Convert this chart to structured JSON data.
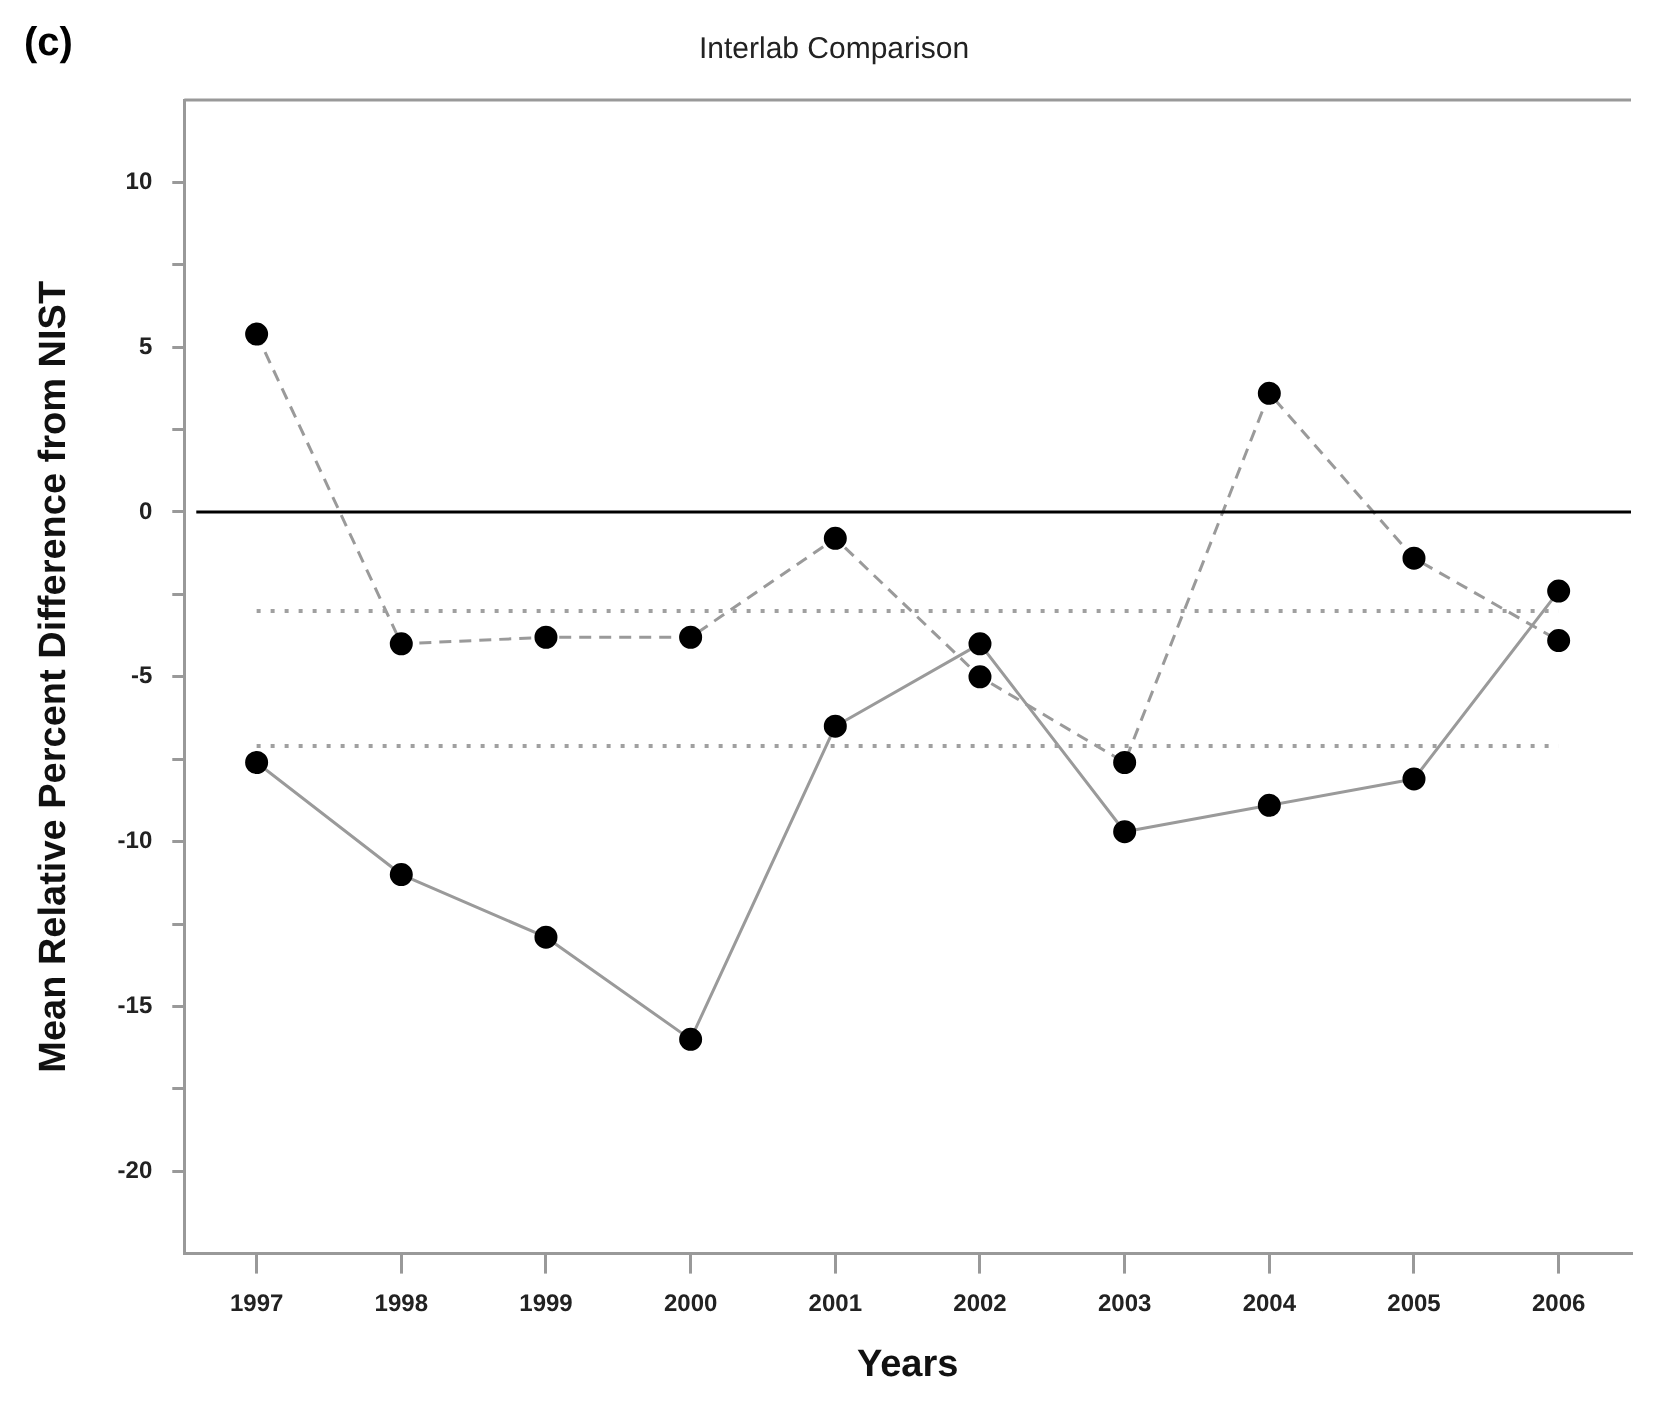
{
  "chart_data": {
    "type": "line",
    "title": "Interlab Comparison",
    "xlabel": "Years",
    "ylabel": "Mean Relative Percent Difference from NIST",
    "annotations": [
      "(c)"
    ],
    "categories": [
      "1997",
      "1998",
      "1999",
      "2000",
      "2001",
      "2002",
      "2003",
      "2004",
      "2005",
      "2006"
    ],
    "series": [
      {
        "color": "#9a9a9a",
        "line_style": "dashed",
        "values": [
          5.4,
          -4.0,
          -3.8,
          -3.8,
          -0.8,
          -5.0,
          -7.6,
          3.6,
          -1.4,
          -3.9
        ]
      },
      {
        "color": "#9a9a9a",
        "line_style": "solid",
        "values": [
          -7.6,
          -11.0,
          -12.9,
          -16.0,
          -6.5,
          -4.0,
          -9.7,
          -8.9,
          -8.1,
          -2.4
        ]
      }
    ],
    "ref_lines": [
      {
        "axis": "y",
        "value": 0,
        "color": "#000000",
        "line_style": "solid"
      },
      {
        "axis": "y",
        "value": -3.0,
        "color": "#a0a0a0",
        "line_style": "dotted"
      },
      {
        "axis": "y",
        "value": -7.1,
        "color": "#a0a0a0",
        "line_style": "dotted"
      }
    ],
    "ylim": [
      -22.5,
      12.5
    ],
    "yticks": [
      -20,
      {
        "value": -17.5,
        "label": null
      },
      -15,
      {
        "value": -12.5,
        "label": null
      },
      -10,
      {
        "value": -7.5,
        "label": null
      },
      -5,
      {
        "value": -2.5,
        "label": null
      },
      0,
      {
        "value": 2.5,
        "label": null
      },
      5,
      {
        "value": 7.5,
        "label": null
      },
      10
    ],
    "grid": false,
    "legend": false,
    "marker": "circle"
  }
}
